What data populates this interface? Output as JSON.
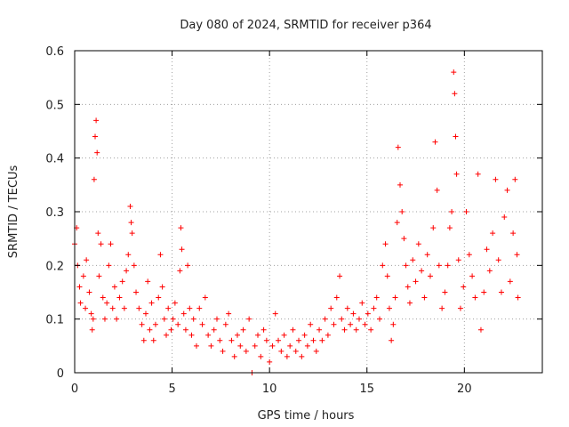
{
  "chart_data": {
    "type": "scatter",
    "title": "Day 080 of 2024, SRMTID for receiver p364",
    "xlabel": "GPS time / hours",
    "ylabel": "SRMTID / TECUs",
    "xlim": [
      0,
      24
    ],
    "ylim": [
      0,
      0.6
    ],
    "xticks": [
      0,
      5,
      10,
      15,
      20
    ],
    "xtick_labels": [
      "0",
      "5",
      "10",
      "15",
      "20"
    ],
    "yticks": [
      0,
      0.1,
      0.2,
      0.3,
      0.4,
      0.5,
      0.6
    ],
    "ytick_labels": [
      "0",
      "0.1",
      "0.2",
      "0.3",
      "0.4",
      "0.5",
      "0.6"
    ],
    "grid": true,
    "marker": "+",
    "series": [
      {
        "name": "SRMTID",
        "color": "#ff0000",
        "points": [
          [
            0.0,
            0.24
          ],
          [
            0.1,
            0.27
          ],
          [
            0.15,
            0.2
          ],
          [
            0.25,
            0.16
          ],
          [
            0.3,
            0.13
          ],
          [
            0.45,
            0.18
          ],
          [
            0.55,
            0.12
          ],
          [
            0.6,
            0.21
          ],
          [
            0.75,
            0.15
          ],
          [
            0.85,
            0.11
          ],
          [
            0.9,
            0.08
          ],
          [
            0.95,
            0.1
          ],
          [
            1.0,
            0.36
          ],
          [
            1.05,
            0.44
          ],
          [
            1.1,
            0.47
          ],
          [
            1.15,
            0.41
          ],
          [
            1.2,
            0.26
          ],
          [
            1.25,
            0.18
          ],
          [
            1.35,
            0.24
          ],
          [
            1.45,
            0.14
          ],
          [
            1.55,
            0.1
          ],
          [
            1.65,
            0.13
          ],
          [
            1.75,
            0.2
          ],
          [
            1.85,
            0.24
          ],
          [
            1.95,
            0.12
          ],
          [
            2.05,
            0.16
          ],
          [
            2.15,
            0.1
          ],
          [
            2.3,
            0.14
          ],
          [
            2.45,
            0.17
          ],
          [
            2.55,
            0.12
          ],
          [
            2.65,
            0.19
          ],
          [
            2.75,
            0.22
          ],
          [
            2.85,
            0.31
          ],
          [
            2.9,
            0.28
          ],
          [
            2.95,
            0.26
          ],
          [
            3.05,
            0.2
          ],
          [
            3.15,
            0.15
          ],
          [
            3.3,
            0.12
          ],
          [
            3.45,
            0.09
          ],
          [
            3.55,
            0.06
          ],
          [
            3.65,
            0.11
          ],
          [
            3.75,
            0.17
          ],
          [
            3.85,
            0.08
          ],
          [
            3.95,
            0.13
          ],
          [
            4.05,
            0.06
          ],
          [
            4.15,
            0.09
          ],
          [
            4.3,
            0.14
          ],
          [
            4.4,
            0.22
          ],
          [
            4.5,
            0.16
          ],
          [
            4.6,
            0.1
          ],
          [
            4.7,
            0.07
          ],
          [
            4.8,
            0.12
          ],
          [
            4.95,
            0.08
          ],
          [
            5.05,
            0.1
          ],
          [
            5.15,
            0.13
          ],
          [
            5.3,
            0.09
          ],
          [
            5.4,
            0.19
          ],
          [
            5.45,
            0.27
          ],
          [
            5.5,
            0.23
          ],
          [
            5.6,
            0.11
          ],
          [
            5.7,
            0.08
          ],
          [
            5.8,
            0.2
          ],
          [
            5.9,
            0.12
          ],
          [
            6.0,
            0.07
          ],
          [
            6.1,
            0.1
          ],
          [
            6.25,
            0.05
          ],
          [
            6.4,
            0.12
          ],
          [
            6.55,
            0.09
          ],
          [
            6.7,
            0.14
          ],
          [
            6.85,
            0.07
          ],
          [
            7.0,
            0.05
          ],
          [
            7.15,
            0.08
          ],
          [
            7.3,
            0.1
          ],
          [
            7.45,
            0.06
          ],
          [
            7.6,
            0.04
          ],
          [
            7.75,
            0.09
          ],
          [
            7.9,
            0.11
          ],
          [
            8.05,
            0.06
          ],
          [
            8.2,
            0.03
          ],
          [
            8.35,
            0.07
          ],
          [
            8.5,
            0.05
          ],
          [
            8.65,
            0.08
          ],
          [
            8.8,
            0.04
          ],
          [
            8.95,
            0.1
          ],
          [
            9.1,
            0.0
          ],
          [
            9.25,
            0.05
          ],
          [
            9.4,
            0.07
          ],
          [
            9.55,
            0.03
          ],
          [
            9.7,
            0.08
          ],
          [
            9.85,
            0.06
          ],
          [
            10.0,
            0.02
          ],
          [
            10.15,
            0.05
          ],
          [
            10.3,
            0.11
          ],
          [
            10.45,
            0.06
          ],
          [
            10.6,
            0.04
          ],
          [
            10.75,
            0.07
          ],
          [
            10.9,
            0.03
          ],
          [
            11.05,
            0.05
          ],
          [
            11.2,
            0.08
          ],
          [
            11.35,
            0.04
          ],
          [
            11.5,
            0.06
          ],
          [
            11.65,
            0.03
          ],
          [
            11.8,
            0.07
          ],
          [
            11.95,
            0.05
          ],
          [
            12.1,
            0.09
          ],
          [
            12.25,
            0.06
          ],
          [
            12.4,
            0.04
          ],
          [
            12.55,
            0.08
          ],
          [
            12.7,
            0.06
          ],
          [
            12.85,
            0.1
          ],
          [
            13.0,
            0.07
          ],
          [
            13.15,
            0.12
          ],
          [
            13.3,
            0.09
          ],
          [
            13.45,
            0.14
          ],
          [
            13.6,
            0.18
          ],
          [
            13.7,
            0.1
          ],
          [
            13.85,
            0.08
          ],
          [
            14.0,
            0.12
          ],
          [
            14.15,
            0.09
          ],
          [
            14.3,
            0.11
          ],
          [
            14.45,
            0.08
          ],
          [
            14.6,
            0.1
          ],
          [
            14.75,
            0.13
          ],
          [
            14.9,
            0.09
          ],
          [
            15.05,
            0.11
          ],
          [
            15.2,
            0.08
          ],
          [
            15.35,
            0.12
          ],
          [
            15.5,
            0.14
          ],
          [
            15.65,
            0.1
          ],
          [
            15.8,
            0.2
          ],
          [
            15.95,
            0.24
          ],
          [
            16.05,
            0.18
          ],
          [
            16.15,
            0.12
          ],
          [
            16.25,
            0.06
          ],
          [
            16.35,
            0.09
          ],
          [
            16.45,
            0.14
          ],
          [
            16.55,
            0.28
          ],
          [
            16.6,
            0.42
          ],
          [
            16.7,
            0.35
          ],
          [
            16.8,
            0.3
          ],
          [
            16.9,
            0.25
          ],
          [
            17.0,
            0.2
          ],
          [
            17.1,
            0.16
          ],
          [
            17.2,
            0.13
          ],
          [
            17.35,
            0.21
          ],
          [
            17.5,
            0.17
          ],
          [
            17.65,
            0.24
          ],
          [
            17.8,
            0.19
          ],
          [
            17.95,
            0.14
          ],
          [
            18.1,
            0.22
          ],
          [
            18.25,
            0.18
          ],
          [
            18.4,
            0.27
          ],
          [
            18.5,
            0.43
          ],
          [
            18.6,
            0.34
          ],
          [
            18.7,
            0.2
          ],
          [
            18.85,
            0.12
          ],
          [
            19.0,
            0.15
          ],
          [
            19.15,
            0.2
          ],
          [
            19.25,
            0.27
          ],
          [
            19.35,
            0.3
          ],
          [
            19.45,
            0.56
          ],
          [
            19.5,
            0.52
          ],
          [
            19.55,
            0.44
          ],
          [
            19.6,
            0.37
          ],
          [
            19.7,
            0.21
          ],
          [
            19.8,
            0.12
          ],
          [
            19.95,
            0.16
          ],
          [
            20.1,
            0.3
          ],
          [
            20.25,
            0.22
          ],
          [
            20.4,
            0.18
          ],
          [
            20.55,
            0.14
          ],
          [
            20.7,
            0.37
          ],
          [
            20.85,
            0.08
          ],
          [
            21.0,
            0.15
          ],
          [
            21.15,
            0.23
          ],
          [
            21.3,
            0.19
          ],
          [
            21.45,
            0.26
          ],
          [
            21.6,
            0.36
          ],
          [
            21.75,
            0.21
          ],
          [
            21.9,
            0.15
          ],
          [
            22.05,
            0.29
          ],
          [
            22.2,
            0.34
          ],
          [
            22.35,
            0.17
          ],
          [
            22.5,
            0.26
          ],
          [
            22.6,
            0.36
          ],
          [
            22.7,
            0.22
          ],
          [
            22.75,
            0.14
          ]
        ]
      }
    ]
  }
}
